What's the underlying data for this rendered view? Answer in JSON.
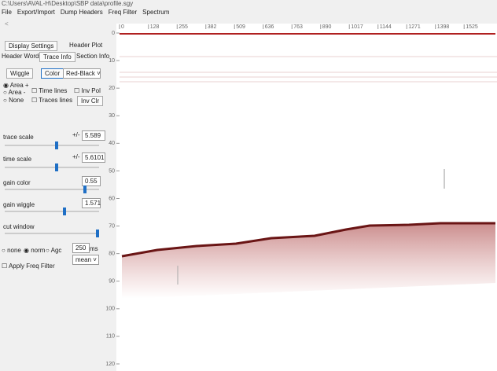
{
  "window": {
    "title": "C:\\Users\\AVAL-H\\Desktop\\SBP data\\profile.sgy"
  },
  "menu": [
    "File",
    "Export/Import",
    "Dump Headers",
    "Freq Filter",
    "Spectrum"
  ],
  "tabs_top": [
    "Display Settings",
    "Header Plot"
  ],
  "tabs_bottom": [
    "Header Words",
    "Trace Info",
    "Section Info"
  ],
  "display": {
    "wiggle": "Wiggle",
    "color": "Color",
    "palette": "Red-Black",
    "area_plus": "Area +",
    "area_minus": "Area -",
    "none": "None",
    "time_lines": "Time lines",
    "inv_pol": "Inv Pol",
    "traces_lines": "Traces lines",
    "inv_clr": "Inv Clr"
  },
  "sliders": [
    {
      "label": "trace scale",
      "spin": "+/-",
      "value": "5.589"
    },
    {
      "label": "time scale",
      "spin": "+/-",
      "value": "5.6101"
    },
    {
      "label": "gain color",
      "value": "0.55"
    },
    {
      "label": "gain wiggle",
      "value": "1.571"
    },
    {
      "label": "cut window"
    }
  ],
  "normalize": {
    "none": "none",
    "norm": "norm",
    "agc": "Agc",
    "window": "250",
    "unit": "ms",
    "mode": "mean"
  },
  "apply_filter": "Apply Freq Filter",
  "section": {
    "xlim": [
      0,
      1660
    ],
    "xticks": [
      0,
      128,
      255,
      382,
      509,
      636,
      763,
      890,
      1017,
      1144,
      1271,
      1398,
      1525
    ],
    "ylim": [
      0,
      122
    ],
    "yticks": [
      0,
      10,
      20,
      30,
      40,
      50,
      60,
      70,
      80,
      90,
      100,
      110,
      120
    ]
  }
}
